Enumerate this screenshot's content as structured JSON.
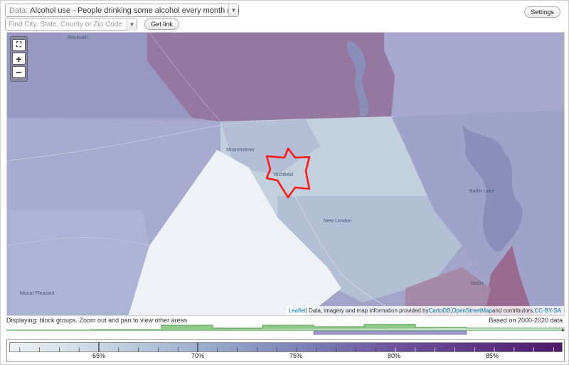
{
  "controls": {
    "data_label": "Data:",
    "data_value": "Alcohol use - People drinking some alcohol every month (%)",
    "search_placeholder": "Find City, State, County or Zip Code",
    "get_link_label": "Get link",
    "settings_label": "Settings"
  },
  "map": {
    "zoom_in": "+",
    "zoom_out": "−",
    "places": {
      "rockwell": "Rockwell",
      "misenheimer": "Misenheimer",
      "richfield": "Richfield",
      "new_london": "New London",
      "badin_lake": "Badin Lake",
      "badin": "Badin",
      "mount_pleasant": "Mount Pleasant"
    },
    "attribution": {
      "leaflet": "Leaflet",
      "text1": " | Data, imagery and map information provided by ",
      "cartodb": "CartoDB",
      "comma": ", ",
      "osm": "OpenStreetMap",
      "text2": " and contributors, ",
      "license": "CC-BY-SA"
    },
    "highlight_color": "#ff1a1a"
  },
  "status": {
    "displaying": "Displaying: block groups. Zoom out and pan to view other areas",
    "based_on": "Based on 2000-2020 data"
  },
  "legend": {
    "labels": [
      "65%",
      "70%",
      "75%",
      "80%",
      "85%"
    ],
    "scale_min_color": "#eef2f5",
    "scale_max_color": "#4d1a6a"
  },
  "histogram": {
    "colors": {
      "green": "#8fca8a",
      "purple": "#9a97c9"
    }
  }
}
